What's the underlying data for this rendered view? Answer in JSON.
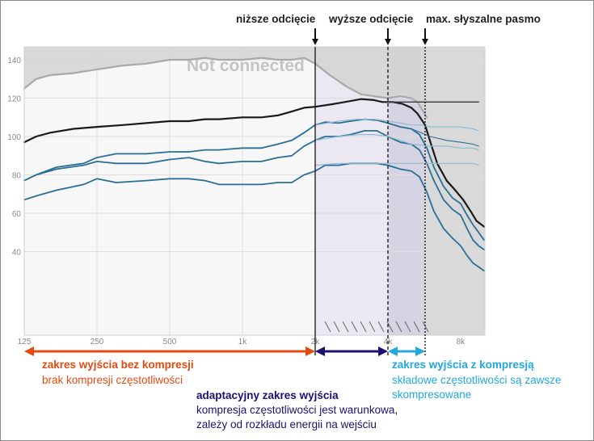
{
  "chart_data": {
    "type": "line",
    "title": "",
    "watermark": "Not connected",
    "xlabel": "",
    "ylabel": "",
    "x_scale": "log",
    "xlim": [
      125,
      10000
    ],
    "ylim": [
      25,
      145
    ],
    "grid": true,
    "x_ticks": [
      {
        "value": 125,
        "label": "125"
      },
      {
        "value": 250,
        "label": "250"
      },
      {
        "value": 500,
        "label": "500"
      },
      {
        "value": 1000,
        "label": "1k"
      },
      {
        "value": 2000,
        "label": "2k"
      },
      {
        "value": 4000,
        "label": "4k"
      },
      {
        "value": 8000,
        "label": "8k"
      }
    ],
    "y_ticks": [
      {
        "value": 40,
        "label": "40"
      },
      {
        "value": 60,
        "label": "60"
      },
      {
        "value": 80,
        "label": "80"
      },
      {
        "value": 100,
        "label": "100"
      },
      {
        "value": 120,
        "label": "120"
      },
      {
        "value": 140,
        "label": "140"
      }
    ],
    "series": [
      {
        "key": "gray_upper",
        "color": "#a9a9a9",
        "width": 2.2,
        "points": [
          [
            125,
            125
          ],
          [
            140,
            130
          ],
          [
            160,
            132
          ],
          [
            200,
            133
          ],
          [
            250,
            135
          ],
          [
            320,
            137
          ],
          [
            400,
            138
          ],
          [
            500,
            140
          ],
          [
            600,
            140
          ],
          [
            700,
            141
          ],
          [
            800,
            140
          ],
          [
            1000,
            140
          ],
          [
            1200,
            141
          ],
          [
            1400,
            140
          ],
          [
            1600,
            140
          ],
          [
            1800,
            141
          ],
          [
            2000,
            138
          ],
          [
            2300,
            132
          ],
          [
            2700,
            126
          ],
          [
            3100,
            122
          ],
          [
            3500,
            121
          ],
          [
            4000,
            120
          ],
          [
            4500,
            121
          ],
          [
            5000,
            120
          ],
          [
            5300,
            118
          ],
          [
            5800,
            110
          ]
        ]
      },
      {
        "key": "black_max",
        "color": "#1a1a1a",
        "width": 2.2,
        "points": [
          [
            125,
            97
          ],
          [
            140,
            100
          ],
          [
            160,
            102
          ],
          [
            200,
            104
          ],
          [
            250,
            105
          ],
          [
            320,
            106
          ],
          [
            400,
            107
          ],
          [
            500,
            108
          ],
          [
            600,
            108
          ],
          [
            700,
            109
          ],
          [
            800,
            109
          ],
          [
            1000,
            110
          ],
          [
            1200,
            110
          ],
          [
            1400,
            111
          ],
          [
            1600,
            113
          ],
          [
            1800,
            115
          ],
          [
            2000,
            115.5
          ],
          [
            2400,
            117
          ],
          [
            2800,
            118.5
          ],
          [
            3100,
            119.5
          ],
          [
            3500,
            119
          ],
          [
            3800,
            118
          ],
          [
            4200,
            118
          ],
          [
            4600,
            117
          ],
          [
            5000,
            115
          ],
          [
            5300,
            112
          ],
          [
            5700,
            106
          ],
          [
            6000,
            97
          ],
          [
            6400,
            86
          ],
          [
            7000,
            77
          ],
          [
            7600,
            72
          ],
          [
            8200,
            67
          ],
          [
            8800,
            61
          ],
          [
            9300,
            56
          ],
          [
            10000,
            53
          ]
        ]
      },
      {
        "key": "blue_top",
        "color": "#2a6f95",
        "width": 1.8,
        "points": [
          [
            125,
            77
          ],
          [
            140,
            80
          ],
          [
            170,
            84
          ],
          [
            220,
            86
          ],
          [
            250,
            89
          ],
          [
            300,
            91
          ],
          [
            400,
            91
          ],
          [
            500,
            92
          ],
          [
            600,
            92
          ],
          [
            700,
            93
          ],
          [
            800,
            93
          ],
          [
            1000,
            94
          ],
          [
            1200,
            94
          ],
          [
            1400,
            96
          ],
          [
            1600,
            98
          ],
          [
            1800,
            102
          ],
          [
            2000,
            106
          ],
          [
            2200,
            107.5
          ],
          [
            2500,
            107
          ],
          [
            2800,
            108
          ],
          [
            3200,
            109
          ],
          [
            3600,
            108.5
          ],
          [
            4000,
            107
          ],
          [
            4500,
            105
          ],
          [
            5000,
            104
          ],
          [
            5400,
            101
          ],
          [
            5800,
            94
          ],
          [
            6200,
            84
          ],
          [
            6800,
            74
          ],
          [
            7400,
            68
          ],
          [
            8000,
            65
          ],
          [
            8500,
            59
          ],
          [
            9000,
            54
          ],
          [
            9500,
            50
          ],
          [
            10000,
            46
          ]
        ]
      },
      {
        "key": "blue_mid",
        "color": "#2a6f95",
        "width": 1.8,
        "points": [
          [
            125,
            77
          ],
          [
            140,
            80
          ],
          [
            170,
            83
          ],
          [
            220,
            85
          ],
          [
            250,
            87
          ],
          [
            300,
            86
          ],
          [
            400,
            86
          ],
          [
            500,
            88
          ],
          [
            600,
            89
          ],
          [
            700,
            87
          ],
          [
            800,
            86
          ],
          [
            1000,
            87
          ],
          [
            1200,
            87
          ],
          [
            1400,
            89
          ],
          [
            1600,
            90
          ],
          [
            1800,
            95
          ],
          [
            2000,
            98
          ],
          [
            2200,
            100
          ],
          [
            2500,
            100
          ],
          [
            2800,
            101
          ],
          [
            3200,
            103
          ],
          [
            3600,
            103
          ],
          [
            4000,
            100
          ],
          [
            4500,
            97
          ],
          [
            5000,
            96
          ],
          [
            5400,
            93
          ],
          [
            5800,
            86
          ],
          [
            6200,
            77
          ],
          [
            6800,
            67
          ],
          [
            7400,
            62
          ],
          [
            8000,
            59
          ],
          [
            8500,
            52
          ],
          [
            9000,
            46
          ],
          [
            9500,
            43
          ],
          [
            10000,
            41
          ]
        ]
      },
      {
        "key": "blue_low",
        "color": "#2a6f95",
        "width": 1.8,
        "points": [
          [
            125,
            67
          ],
          [
            140,
            69
          ],
          [
            170,
            72
          ],
          [
            220,
            75
          ],
          [
            250,
            78
          ],
          [
            300,
            76
          ],
          [
            400,
            77
          ],
          [
            500,
            78
          ],
          [
            600,
            78
          ],
          [
            700,
            77
          ],
          [
            800,
            75
          ],
          [
            1000,
            75
          ],
          [
            1200,
            75
          ],
          [
            1400,
            76
          ],
          [
            1600,
            76
          ],
          [
            1800,
            80
          ],
          [
            2000,
            82
          ],
          [
            2200,
            85
          ],
          [
            2500,
            85
          ],
          [
            2800,
            86
          ],
          [
            3200,
            86
          ],
          [
            3600,
            86
          ],
          [
            4000,
            85
          ],
          [
            4500,
            83
          ],
          [
            5000,
            82
          ],
          [
            5400,
            79
          ],
          [
            5800,
            71
          ],
          [
            6200,
            61
          ],
          [
            6800,
            52
          ],
          [
            7400,
            47
          ],
          [
            8000,
            43
          ],
          [
            8500,
            38
          ],
          [
            9000,
            34
          ],
          [
            9500,
            32
          ],
          [
            10000,
            30
          ]
        ]
      },
      {
        "key": "target_a",
        "color": "#8fbcd0",
        "width": 1.2,
        "points": [
          [
            2000,
            106
          ],
          [
            2500,
            108
          ],
          [
            3000,
            109
          ],
          [
            3500,
            109
          ],
          [
            4000,
            108
          ],
          [
            4500,
            107
          ],
          [
            5000,
            106
          ],
          [
            5500,
            106
          ],
          [
            6000,
            105
          ],
          [
            7000,
            105
          ],
          [
            8000,
            105
          ],
          [
            9000,
            104
          ],
          [
            9500,
            103
          ]
        ]
      },
      {
        "key": "target_b",
        "color": "#8fbcd0",
        "width": 1.2,
        "points": [
          [
            2000,
            98
          ],
          [
            2500,
            100
          ],
          [
            3000,
            101
          ],
          [
            3500,
            101
          ],
          [
            4000,
            100
          ],
          [
            4500,
            98
          ],
          [
            5000,
            96
          ],
          [
            6000,
            95
          ],
          [
            7000,
            95
          ],
          [
            8000,
            94
          ],
          [
            9000,
            94
          ],
          [
            9500,
            93
          ]
        ]
      },
      {
        "key": "target_c",
        "color": "#8fbcd0",
        "width": 1.2,
        "points": [
          [
            2000,
            85
          ],
          [
            2500,
            86
          ],
          [
            3000,
            86
          ],
          [
            3500,
            86
          ],
          [
            4000,
            86
          ],
          [
            4500,
            86
          ],
          [
            5000,
            86
          ],
          [
            6000,
            86
          ],
          [
            7000,
            86
          ],
          [
            8000,
            86
          ],
          [
            9000,
            86
          ],
          [
            9500,
            85
          ]
        ]
      },
      {
        "key": "blue_top_ext",
        "color": "#2a6f95",
        "width": 1.1,
        "points": [
          [
            5000,
            104
          ],
          [
            6000,
            100
          ],
          [
            7000,
            98
          ],
          [
            8000,
            97
          ],
          [
            9000,
            96
          ],
          [
            9500,
            95
          ]
        ]
      },
      {
        "key": "black_flat",
        "color": "#3a3a3a",
        "width": 1.4,
        "points": [
          [
            4000,
            118
          ],
          [
            5000,
            118
          ],
          [
            6000,
            118
          ],
          [
            7000,
            118
          ],
          [
            8000,
            118
          ],
          [
            9500,
            118
          ]
        ]
      }
    ],
    "markers": [
      {
        "key": "lower_cutoff",
        "value": 2000,
        "label": "niższe odcięcie"
      },
      {
        "key": "upper_cutoff",
        "value": 4000,
        "label": "wyższe odcięcie"
      },
      {
        "key": "max_band",
        "value": 5700,
        "label": "max. słyszalne pasmo"
      }
    ],
    "zones": [
      {
        "key": "no_compression",
        "from": 125,
        "to": 2000,
        "color": "#e34a10",
        "title": "zakres wyjścia  bez kompresji",
        "description": [
          "brak kompresji częstotliwości"
        ]
      },
      {
        "key": "adaptive",
        "from": 2000,
        "to": 4000,
        "color": "#1d1070",
        "title": "adaptacyjny  zakres wyjścia",
        "description": [
          "kompresja częstotliwości jest warunkowa,",
          "zależy od rozkładu energii  na wejściu"
        ]
      },
      {
        "key": "with_compression",
        "from": 4000,
        "to": 5700,
        "color": "#23a8dc",
        "title": "zakres wyjścia  z kompresją",
        "description": [
          "składowe częstotliwości są zawsze",
          "skompresowane"
        ]
      }
    ]
  }
}
